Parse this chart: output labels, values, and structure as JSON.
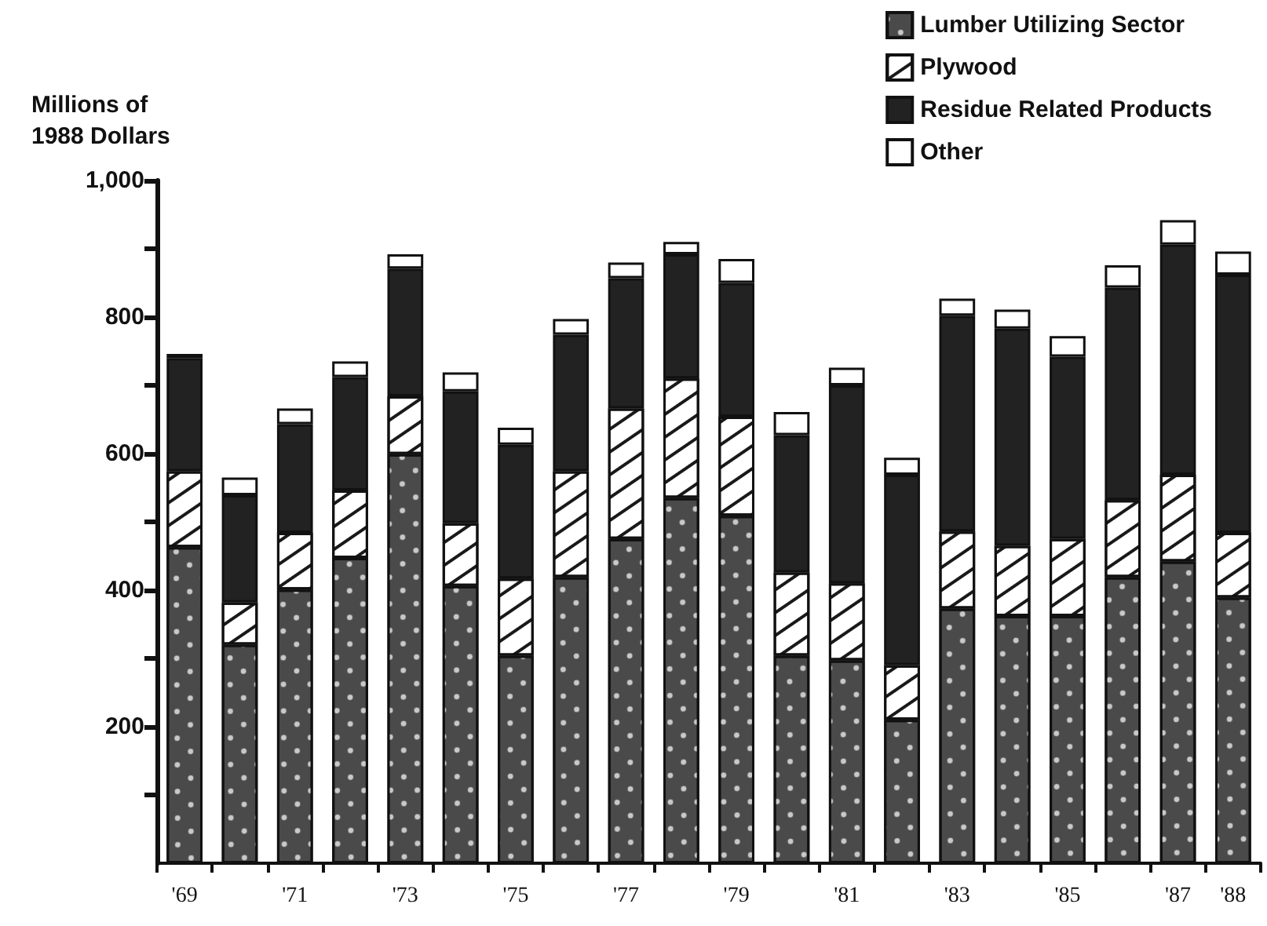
{
  "chart_data": {
    "type": "bar",
    "stacked": true,
    "ylabel": "Millions of\n1988 Dollars",
    "categories": [
      "'69",
      null,
      "'71",
      null,
      "'73",
      null,
      "'75",
      null,
      "'77",
      null,
      "'79",
      null,
      "'81",
      null,
      "'83",
      null,
      "'85",
      null,
      "'87",
      "'88"
    ],
    "series": [
      {
        "name": "Lumber Utilizing Sector",
        "color": "#4a4a4a",
        "values": [
          463,
          320,
          401,
          447,
          599,
          406,
          304,
          419,
          475,
          535,
          509,
          304,
          297,
          210,
          373,
          362,
          362,
          419,
          442,
          389
        ]
      },
      {
        "name": "Plywood",
        "color": "#ffffff",
        "values": [
          111,
          62,
          83,
          99,
          85,
          92,
          113,
          155,
          191,
          175,
          145,
          122,
          113,
          80,
          113,
          103,
          113,
          113,
          127,
          95
        ]
      },
      {
        "name": "Residue Related Products",
        "color": "#222222",
        "values": [
          166,
          157,
          159,
          166,
          187,
          193,
          196,
          200,
          191,
          182,
          196,
          201,
          290,
          279,
          316,
          318,
          267,
          311,
          337,
          378
        ]
      },
      {
        "name": "Other",
        "color": "#ffffff",
        "values": [
          6,
          26,
          23,
          23,
          21,
          28,
          25,
          23,
          23,
          18,
          35,
          34,
          26,
          25,
          25,
          28,
          30,
          33,
          36,
          34
        ]
      }
    ],
    "ylim": [
      0,
      1000
    ],
    "yticks": [
      {
        "value": 100,
        "label": null
      },
      "200",
      {
        "value": 300,
        "label": null
      },
      400,
      {
        "value": 500,
        "label": null
      },
      600,
      {
        "value": 700,
        "label": null
      },
      800,
      {
        "value": 900,
        "label": null
      },
      {
        "value": 1000,
        "label": "1,000"
      }
    ],
    "grid": false,
    "legend": "top right"
  }
}
